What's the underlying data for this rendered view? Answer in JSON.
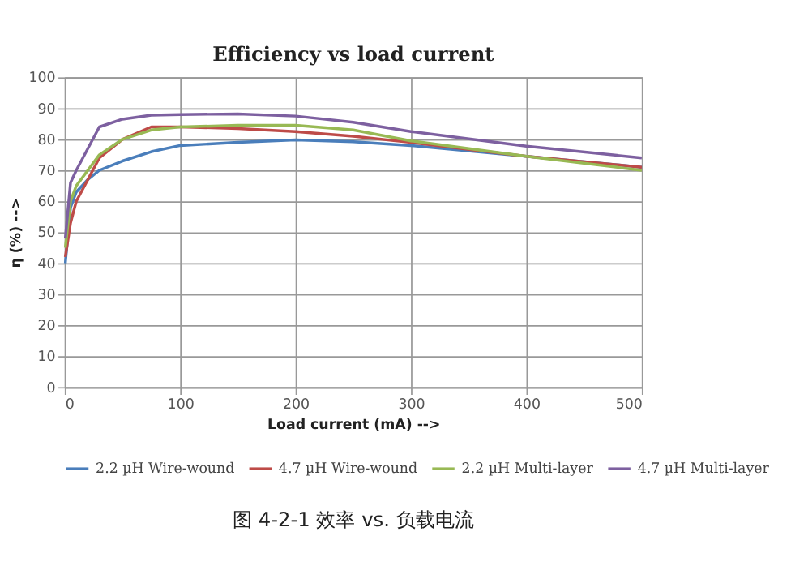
{
  "chart_data": {
    "type": "line",
    "title": "Efficiency vs load current",
    "xlabel": "Load current (mA) -->",
    "ylabel": "η (%) -->",
    "xlim": [
      0,
      500
    ],
    "xticks": [
      0,
      100,
      200,
      300,
      400,
      500
    ],
    "ylim": [
      0,
      100
    ],
    "yticks": [
      0,
      10,
      20,
      30,
      40,
      50,
      60,
      70,
      80,
      90,
      100
    ],
    "grid": true,
    "legend": "bottom",
    "marker": "none",
    "line_style": "solid",
    "annotations": [
      "图 4-2-1  效率  vs.  负载电流"
    ],
    "x": [
      0.5,
      5,
      10,
      20,
      30,
      50,
      75,
      100,
      150,
      200,
      250,
      300,
      400,
      500
    ],
    "series": [
      {
        "name": "2.2 µH Wire-wound",
        "color": "#4a7ebb",
        "values": [
          40,
          58,
          63,
          67,
          70,
          73,
          76,
          78,
          79,
          79.8,
          79.2,
          78,
          74.5,
          71
        ]
      },
      {
        "name": "4.7 µH Wire-wound",
        "color": "#be4b48",
        "values": [
          42,
          53,
          60,
          67,
          74,
          80,
          84,
          84,
          83.5,
          82.5,
          81,
          79,
          74.5,
          71
        ]
      },
      {
        "name": "2.2 µH Multi-layer",
        "color": "#98b954",
        "values": [
          45,
          60,
          65,
          70,
          75,
          80,
          83,
          84,
          84.5,
          84.5,
          83,
          79.5,
          74.5,
          70
        ]
      },
      {
        "name": "4.7 µH Multi-layer",
        "color": "#7d60a0",
        "values": [
          48,
          66,
          70,
          77,
          84,
          86.5,
          87.8,
          88,
          88.2,
          87.5,
          85.5,
          82.5,
          77.8,
          74
        ]
      }
    ]
  }
}
